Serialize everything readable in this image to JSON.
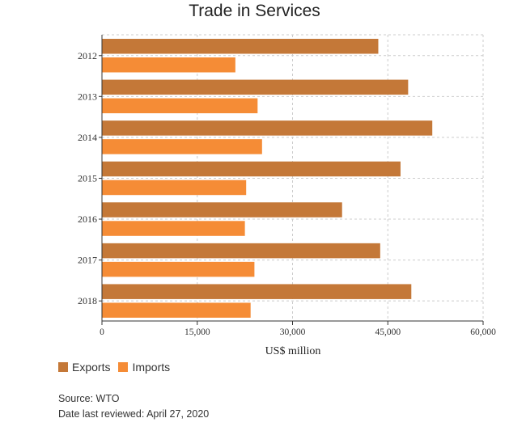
{
  "chart_data": {
    "type": "bar",
    "orientation": "horizontal",
    "title": "Trade in Services",
    "xlabel": "US$ million",
    "ylabel": "",
    "categories": [
      "2012",
      "2013",
      "2014",
      "2015",
      "2016",
      "2017",
      "2018"
    ],
    "series": [
      {
        "name": "Exports",
        "color": "#c47838",
        "values": [
          43500,
          48200,
          52000,
          47000,
          37800,
          43800,
          48700
        ]
      },
      {
        "name": "Imports",
        "color": "#f58c36",
        "values": [
          21000,
          24500,
          25200,
          22700,
          22500,
          24000,
          23400
        ]
      }
    ],
    "xlim": [
      0,
      60000
    ],
    "xticks": [
      "0",
      "15,000",
      "30,000",
      "45,000",
      "60,000"
    ],
    "grid": true,
    "legend_position": "bottom-left"
  },
  "footer": {
    "source": "Source: WTO",
    "reviewed": "Date last reviewed: April 27, 2020"
  }
}
